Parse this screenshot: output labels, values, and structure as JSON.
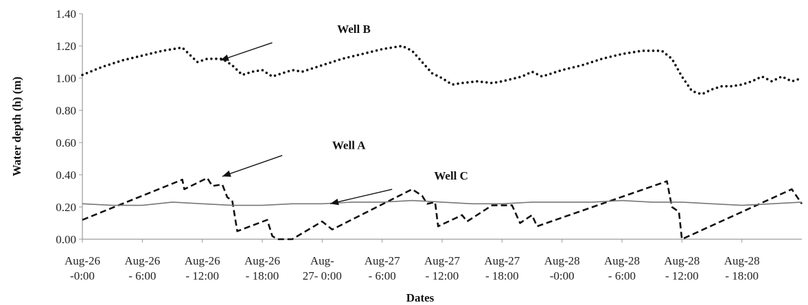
{
  "chart_data": {
    "type": "line",
    "title": "",
    "xlabel": "Dates",
    "ylabel": "Water depth (h) (m)",
    "ylim": [
      0,
      1.4
    ],
    "xlim": [
      0,
      72
    ],
    "x_unit": "hours",
    "grid": false,
    "y_ticks": [
      "0.00",
      "0.20",
      "0.40",
      "0.60",
      "0.80",
      "1.00",
      "1.20",
      "1.40"
    ],
    "x_ticks": [
      {
        "x": 0,
        "lines": [
          "Aug-26",
          "-0:00"
        ]
      },
      {
        "x": 6,
        "lines": [
          "Aug-26",
          "- 6:00"
        ]
      },
      {
        "x": 12,
        "lines": [
          "Aug-26",
          "- 12:00"
        ]
      },
      {
        "x": 18,
        "lines": [
          "Aug-26",
          "- 18:00"
        ]
      },
      {
        "x": 24,
        "lines": [
          "Aug-",
          "27- 0:00"
        ]
      },
      {
        "x": 30,
        "lines": [
          "Aug-27",
          "- 6:00"
        ]
      },
      {
        "x": 36,
        "lines": [
          "Aug-27",
          "- 12:00"
        ]
      },
      {
        "x": 42,
        "lines": [
          "Aug-27",
          "- 18:00"
        ]
      },
      {
        "x": 48,
        "lines": [
          "Aug-28",
          "-0:00"
        ]
      },
      {
        "x": 54,
        "lines": [
          "Aug-28",
          "- 6:00"
        ]
      },
      {
        "x": 60,
        "lines": [
          "Aug-28",
          "- 12:00"
        ]
      },
      {
        "x": 66,
        "lines": [
          "Aug-28",
          "- 18:00"
        ]
      }
    ],
    "series": [
      {
        "name": "Well B",
        "style": "dotted",
        "color": "#111111",
        "points": [
          [
            0,
            1.02
          ],
          [
            2,
            1.07
          ],
          [
            4,
            1.11
          ],
          [
            6,
            1.14
          ],
          [
            8,
            1.17
          ],
          [
            10,
            1.19
          ],
          [
            11,
            1.13
          ],
          [
            11.5,
            1.1
          ],
          [
            12.5,
            1.12
          ],
          [
            14,
            1.12
          ],
          [
            15,
            1.08
          ],
          [
            16,
            1.02
          ],
          [
            17,
            1.04
          ],
          [
            18,
            1.05
          ],
          [
            19,
            1.01
          ],
          [
            20,
            1.03
          ],
          [
            21,
            1.05
          ],
          [
            22,
            1.04
          ],
          [
            24,
            1.08
          ],
          [
            26,
            1.12
          ],
          [
            28,
            1.15
          ],
          [
            30,
            1.18
          ],
          [
            32,
            1.2
          ],
          [
            33,
            1.17
          ],
          [
            34,
            1.1
          ],
          [
            35,
            1.03
          ],
          [
            36,
            1.0
          ],
          [
            37,
            0.96
          ],
          [
            38,
            0.97
          ],
          [
            39.5,
            0.98
          ],
          [
            41,
            0.97
          ],
          [
            42,
            0.98
          ],
          [
            44,
            1.01
          ],
          [
            45,
            1.04
          ],
          [
            46,
            1.01
          ],
          [
            48,
            1.05
          ],
          [
            50,
            1.08
          ],
          [
            52,
            1.12
          ],
          [
            54,
            1.15
          ],
          [
            56,
            1.17
          ],
          [
            58,
            1.17
          ],
          [
            59,
            1.12
          ],
          [
            60,
            1.01
          ],
          [
            61,
            0.92
          ],
          [
            62,
            0.9
          ],
          [
            63,
            0.93
          ],
          [
            64,
            0.95
          ],
          [
            65,
            0.95
          ],
          [
            66,
            0.96
          ],
          [
            67,
            0.98
          ],
          [
            68,
            1.01
          ],
          [
            69,
            0.98
          ],
          [
            70,
            1.01
          ],
          [
            71,
            0.98
          ],
          [
            72,
            1.0
          ]
        ]
      },
      {
        "name": "Well A",
        "style": "dashed",
        "color": "#111111",
        "points": [
          [
            0,
            0.12
          ],
          [
            10,
            0.37
          ],
          [
            10.2,
            0.31
          ],
          [
            12.5,
            0.38
          ],
          [
            13,
            0.33
          ],
          [
            14,
            0.34
          ],
          [
            14.5,
            0.26
          ],
          [
            15,
            0.24
          ],
          [
            15.5,
            0.05
          ],
          [
            18.5,
            0.12
          ],
          [
            19,
            0.02
          ],
          [
            19.5,
            0.0
          ],
          [
            21,
            0.0
          ],
          [
            24,
            0.11
          ],
          [
            25,
            0.06
          ],
          [
            33,
            0.31
          ],
          [
            34,
            0.27
          ],
          [
            34.5,
            0.22
          ],
          [
            35.3,
            0.23
          ],
          [
            35.6,
            0.08
          ],
          [
            38,
            0.15
          ],
          [
            38.5,
            0.11
          ],
          [
            41,
            0.21
          ],
          [
            43,
            0.21
          ],
          [
            43.8,
            0.1
          ],
          [
            45,
            0.15
          ],
          [
            45.5,
            0.08
          ],
          [
            58.5,
            0.36
          ],
          [
            59,
            0.2
          ],
          [
            59.7,
            0.17
          ],
          [
            60,
            0.0
          ],
          [
            71,
            0.31
          ],
          [
            72,
            0.22
          ]
        ]
      },
      {
        "name": "Well C",
        "style": "solid",
        "color": "#777777",
        "points": [
          [
            0,
            0.22
          ],
          [
            3,
            0.21
          ],
          [
            6,
            0.21
          ],
          [
            9,
            0.23
          ],
          [
            12,
            0.22
          ],
          [
            15,
            0.21
          ],
          [
            18,
            0.21
          ],
          [
            21,
            0.22
          ],
          [
            24,
            0.22
          ],
          [
            27,
            0.23
          ],
          [
            30,
            0.23
          ],
          [
            33,
            0.24
          ],
          [
            36,
            0.23
          ],
          [
            39,
            0.22
          ],
          [
            42,
            0.22
          ],
          [
            45,
            0.23
          ],
          [
            48,
            0.23
          ],
          [
            51,
            0.23
          ],
          [
            54,
            0.24
          ],
          [
            57,
            0.23
          ],
          [
            60,
            0.23
          ],
          [
            63,
            0.22
          ],
          [
            66,
            0.21
          ],
          [
            69,
            0.22
          ],
          [
            72,
            0.23
          ]
        ]
      }
    ],
    "annotations": [
      {
        "text": "Well B",
        "series": "Well B",
        "text_at": [
          25.5,
          1.28
        ],
        "arrow_from": [
          19.0,
          1.22
        ],
        "arrow_to": [
          13.8,
          1.11
        ]
      },
      {
        "text": "Well A",
        "series": "Well A",
        "text_at": [
          25.0,
          0.56
        ],
        "arrow_from": [
          20.0,
          0.52
        ],
        "arrow_to": [
          14.0,
          0.39
        ]
      },
      {
        "text": "Well C",
        "series": "Well C",
        "text_at": [
          35.2,
          0.37
        ],
        "arrow_from": [
          31.0,
          0.31
        ],
        "arrow_to": [
          24.8,
          0.22
        ]
      }
    ]
  }
}
